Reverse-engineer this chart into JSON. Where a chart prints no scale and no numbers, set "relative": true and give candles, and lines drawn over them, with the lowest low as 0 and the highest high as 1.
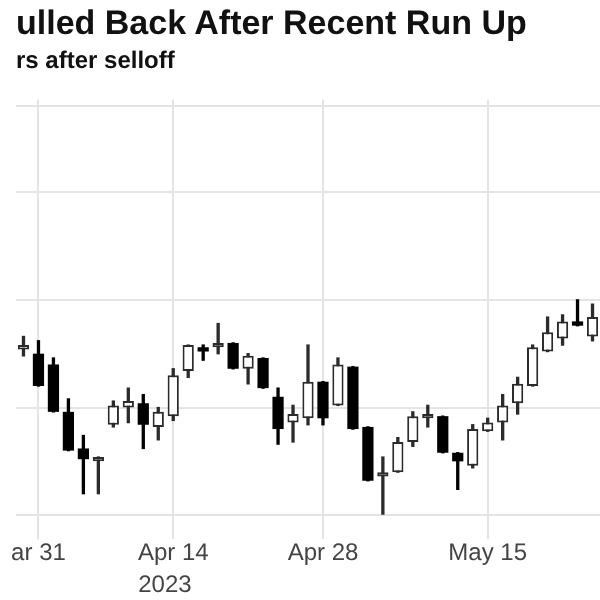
{
  "chart_data": {
    "type": "candlestick",
    "title": "ulled Back After Recent Run Up",
    "subtitle": "rs after selloff",
    "relative": true,
    "grid": true,
    "legend": false,
    "categories": [
      null,
      "ar 31",
      null,
      null,
      null,
      null,
      null,
      null,
      null,
      null,
      "Apr 14",
      null,
      null,
      null,
      null,
      null,
      null,
      null,
      null,
      null,
      "Apr 28",
      null,
      null,
      null,
      null,
      null,
      null,
      null,
      null,
      null,
      null,
      "May 15",
      null,
      null,
      null,
      null,
      null,
      null,
      null
    ],
    "annotations": [
      "2023"
    ],
    "ohlc": [
      [
        0.77,
        0.83,
        0.74,
        0.79
      ],
      [
        0.75,
        0.81,
        0.6,
        0.6
      ],
      [
        0.7,
        0.73,
        0.48,
        0.48
      ],
      [
        0.48,
        0.54,
        0.3,
        0.3
      ],
      [
        0.31,
        0.37,
        0.1,
        0.26
      ],
      [
        0.25,
        0.27,
        0.1,
        0.27
      ],
      [
        0.42,
        0.53,
        0.41,
        0.51
      ],
      [
        0.5,
        0.59,
        0.43,
        0.53
      ],
      [
        0.52,
        0.56,
        0.31,
        0.42
      ],
      [
        0.41,
        0.5,
        0.35,
        0.48
      ],
      [
        0.46,
        0.68,
        0.44,
        0.65
      ],
      [
        0.67,
        0.79,
        0.64,
        0.79
      ],
      [
        0.78,
        0.79,
        0.72,
        0.76
      ],
      [
        0.78,
        0.89,
        0.75,
        0.8
      ],
      [
        0.8,
        0.8,
        0.68,
        0.68
      ],
      [
        0.68,
        0.75,
        0.61,
        0.74
      ],
      [
        0.73,
        0.73,
        0.59,
        0.59
      ],
      [
        0.55,
        0.59,
        0.33,
        0.4
      ],
      [
        0.43,
        0.51,
        0.34,
        0.47
      ],
      [
        0.45,
        0.79,
        0.42,
        0.62
      ],
      [
        0.62,
        0.62,
        0.42,
        0.45
      ],
      [
        0.51,
        0.73,
        0.51,
        0.7
      ],
      [
        0.69,
        0.69,
        0.4,
        0.4
      ],
      [
        0.41,
        0.41,
        0.16,
        0.16
      ],
      [
        0.18,
        0.27,
        0.0,
        0.2
      ],
      [
        0.2,
        0.36,
        0.2,
        0.34
      ],
      [
        0.34,
        0.48,
        0.32,
        0.46
      ],
      [
        0.45,
        0.51,
        0.41,
        0.47
      ],
      [
        0.46,
        0.46,
        0.29,
        0.29
      ],
      [
        0.29,
        0.29,
        0.12,
        0.25
      ],
      [
        0.23,
        0.42,
        0.22,
        0.4
      ],
      [
        0.39,
        0.45,
        0.39,
        0.43
      ],
      [
        0.43,
        0.56,
        0.35,
        0.51
      ],
      [
        0.52,
        0.64,
        0.47,
        0.61
      ],
      [
        0.6,
        0.79,
        0.6,
        0.78
      ],
      [
        0.76,
        0.92,
        0.76,
        0.85
      ],
      [
        0.82,
        0.93,
        0.79,
        0.9
      ],
      [
        0.9,
        1.0,
        0.88,
        0.88
      ],
      [
        0.83,
        0.98,
        0.81,
        0.92
      ]
    ]
  }
}
